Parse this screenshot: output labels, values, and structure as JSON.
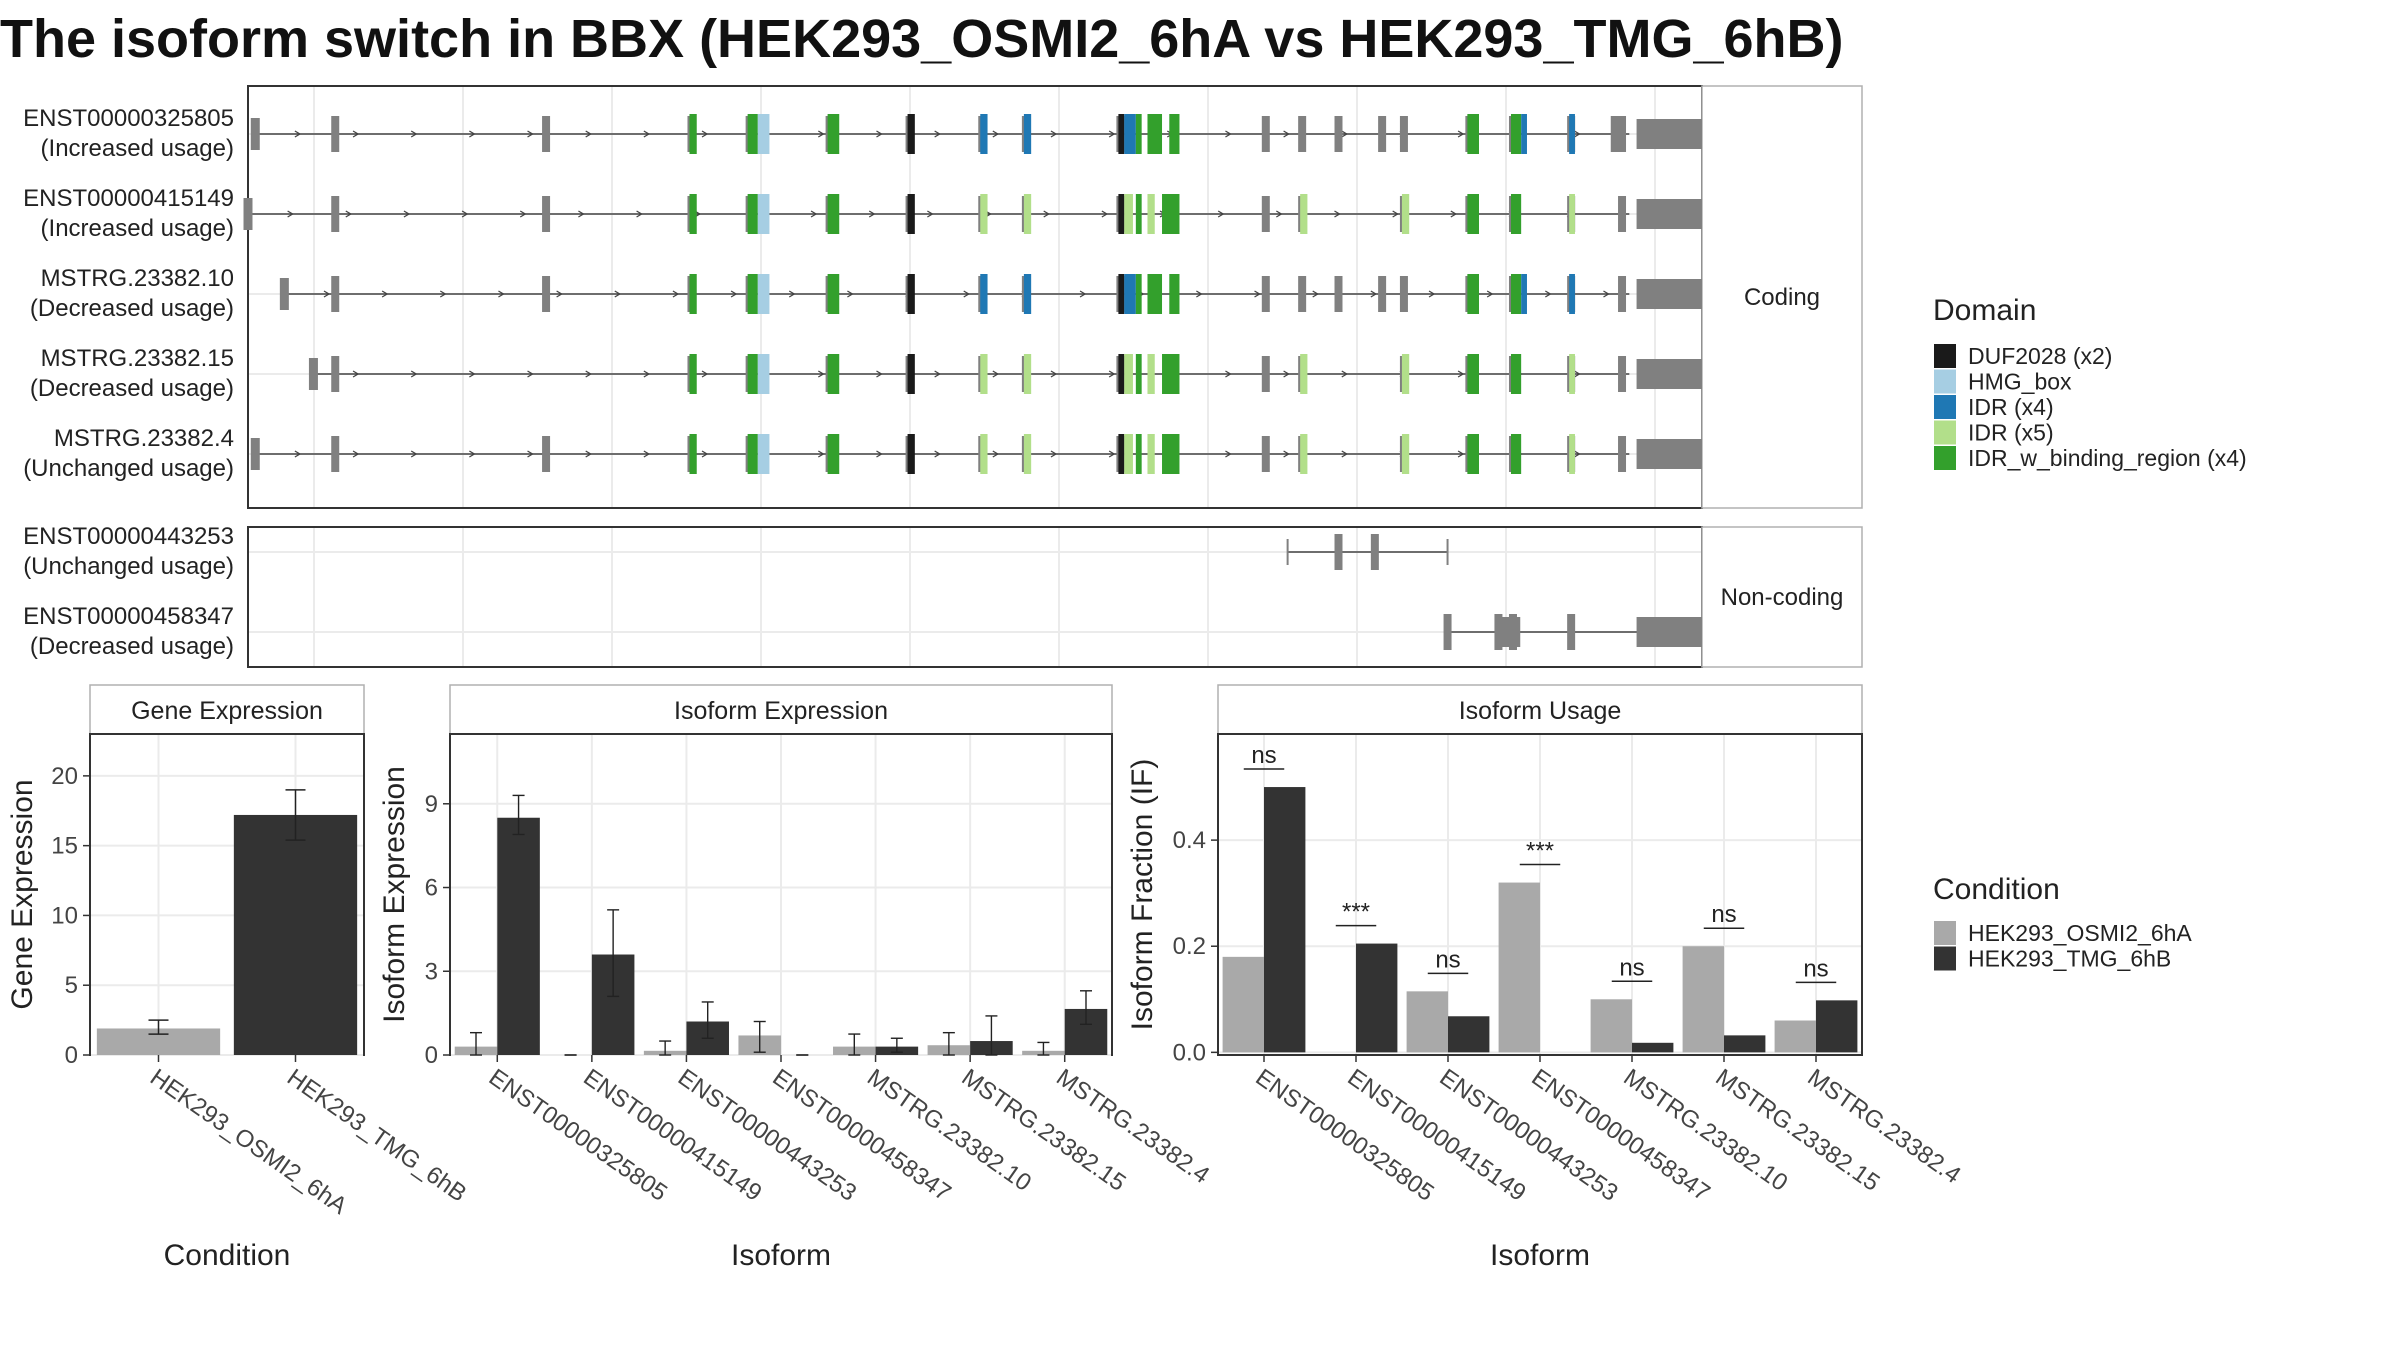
{
  "title": "The isoform switch in BBX (HEK293_OSMI2_6hA vs HEK293_TMG_6hB)",
  "colors": {
    "DUF2028": "#1a1a1a",
    "HMG_box": "#a6cee3",
    "IDR": "#1f78b4",
    "IDR_light": "#b2df8a",
    "IDR_w_binding_region": "#33a02c",
    "exon": "#808080",
    "condA": "#a9a9a9",
    "condB": "#333333",
    "grid": "#ebebeb",
    "panel_border": "#333333"
  },
  "chart_data": [
    {
      "type": "gene-structure",
      "x_range": [
        0,
        100
      ],
      "coding_label": "Coding",
      "noncoding_label": "Non-coding",
      "domain_legend_title": "Domain",
      "domain_legend": [
        {
          "label": "DUF2028 (x2)",
          "color": "#1a1a1a"
        },
        {
          "label": "HMG_box",
          "color": "#a6cee3"
        },
        {
          "label": "IDR (x4)",
          "color": "#1f78b4"
        },
        {
          "label": "IDR (x5)",
          "color": "#b2df8a"
        },
        {
          "label": "IDR_w_binding_region (x4)",
          "color": "#33a02c"
        }
      ],
      "transcripts": [
        {
          "id": "ENST00000325805",
          "usage": "(Increased usage)",
          "group": "coding",
          "start": 0.5,
          "end": 100,
          "exons": [
            0.5,
            6,
            20.5,
            30.5,
            34.5,
            40,
            45.5,
            50.5,
            53.5,
            60,
            70,
            72.5,
            75,
            78,
            79.5,
            84,
            87,
            91,
            94,
            94.5
          ],
          "domains": [
            [
              30.5,
              31,
              "IDR_w_binding_region"
            ],
            [
              34.5,
              35.2,
              "IDR_w_binding_region"
            ],
            [
              35.2,
              36,
              "HMG_box"
            ],
            [
              40,
              40.8,
              "IDR_w_binding_region"
            ],
            [
              45.5,
              46,
              "DUF2028"
            ],
            [
              50.5,
              51,
              "IDR"
            ],
            [
              53.5,
              54,
              "IDR"
            ],
            [
              60,
              60.4,
              "DUF2028"
            ],
            [
              60.4,
              61.2,
              "IDR"
            ],
            [
              61.2,
              61.6,
              "IDR_w_binding_region"
            ],
            [
              62,
              63,
              "IDR_w_binding_region"
            ],
            [
              63.5,
              64.2,
              "IDR_w_binding_region"
            ],
            [
              84,
              84.8,
              "IDR_w_binding_region"
            ],
            [
              87,
              87.7,
              "IDR_w_binding_region"
            ],
            [
              87.7,
              88.1,
              "IDR"
            ],
            [
              91,
              91.4,
              "IDR"
            ]
          ]
        },
        {
          "id": "ENST00000415149",
          "usage": "(Increased usage)",
          "group": "coding",
          "start": 0,
          "end": 100,
          "exons": [
            0,
            6,
            20.5,
            30.5,
            34.5,
            40,
            45.5,
            50.5,
            53.5,
            60,
            70,
            72.5,
            79.5,
            84,
            87,
            91,
            94.5
          ],
          "domains": [
            [
              30.5,
              31,
              "IDR_w_binding_region"
            ],
            [
              34.5,
              35.2,
              "IDR_w_binding_region"
            ],
            [
              35.2,
              36,
              "HMG_box"
            ],
            [
              40,
              40.8,
              "IDR_w_binding_region"
            ],
            [
              45.5,
              46,
              "DUF2028"
            ],
            [
              50.5,
              51,
              "IDR_light"
            ],
            [
              53.5,
              54,
              "IDR_light"
            ],
            [
              60,
              60.4,
              "DUF2028"
            ],
            [
              60.4,
              61,
              "IDR_light"
            ],
            [
              61.2,
              61.6,
              "IDR_w_binding_region"
            ],
            [
              62,
              62.5,
              "IDR_light"
            ],
            [
              63,
              64.2,
              "IDR_w_binding_region"
            ],
            [
              72.5,
              73,
              "IDR_light"
            ],
            [
              79.5,
              80,
              "IDR_light"
            ],
            [
              84,
              84.8,
              "IDR_w_binding_region"
            ],
            [
              87,
              87.7,
              "IDR_w_binding_region"
            ],
            [
              91,
              91.4,
              "IDR_light"
            ]
          ]
        },
        {
          "id": "MSTRG.23382.10",
          "usage": "(Decreased usage)",
          "group": "coding",
          "start": 2.5,
          "end": 100,
          "exons": [
            2.5,
            6,
            20.5,
            30.5,
            34.5,
            40,
            45.5,
            50.5,
            53.5,
            60,
            70,
            72.5,
            75,
            78,
            79.5,
            84,
            87,
            91,
            94.5
          ],
          "domains": [
            [
              30.5,
              31,
              "IDR_w_binding_region"
            ],
            [
              34.5,
              35.2,
              "IDR_w_binding_region"
            ],
            [
              35.2,
              36,
              "HMG_box"
            ],
            [
              40,
              40.8,
              "IDR_w_binding_region"
            ],
            [
              45.5,
              46,
              "DUF2028"
            ],
            [
              50.5,
              51,
              "IDR"
            ],
            [
              53.5,
              54,
              "IDR"
            ],
            [
              60,
              60.4,
              "DUF2028"
            ],
            [
              60.4,
              61.2,
              "IDR"
            ],
            [
              61.2,
              61.6,
              "IDR_w_binding_region"
            ],
            [
              62,
              63,
              "IDR_w_binding_region"
            ],
            [
              63.5,
              64.2,
              "IDR_w_binding_region"
            ],
            [
              84,
              84.8,
              "IDR_w_binding_region"
            ],
            [
              87,
              87.7,
              "IDR_w_binding_region"
            ],
            [
              87.7,
              88.1,
              "IDR"
            ],
            [
              91,
              91.4,
              "IDR"
            ]
          ]
        },
        {
          "id": "MSTRG.23382.15",
          "usage": "(Decreased usage)",
          "group": "coding",
          "start": 4.5,
          "end": 100,
          "exons": [
            4.5,
            6,
            30.5,
            34.5,
            40,
            45.5,
            50.5,
            53.5,
            60,
            70,
            72.5,
            79.5,
            84,
            87,
            91,
            94.5
          ],
          "domains": [
            [
              30.5,
              31,
              "IDR_w_binding_region"
            ],
            [
              34.5,
              35.2,
              "IDR_w_binding_region"
            ],
            [
              35.2,
              36,
              "HMG_box"
            ],
            [
              40,
              40.8,
              "IDR_w_binding_region"
            ],
            [
              45.5,
              46,
              "DUF2028"
            ],
            [
              50.5,
              51,
              "IDR_light"
            ],
            [
              53.5,
              54,
              "IDR_light"
            ],
            [
              60,
              60.4,
              "DUF2028"
            ],
            [
              60.4,
              61,
              "IDR_light"
            ],
            [
              61.2,
              61.6,
              "IDR_w_binding_region"
            ],
            [
              62,
              62.5,
              "IDR_light"
            ],
            [
              63,
              64.2,
              "IDR_w_binding_region"
            ],
            [
              72.5,
              73,
              "IDR_light"
            ],
            [
              79.5,
              80,
              "IDR_light"
            ],
            [
              84,
              84.8,
              "IDR_w_binding_region"
            ],
            [
              87,
              87.7,
              "IDR_w_binding_region"
            ],
            [
              91,
              91.4,
              "IDR_light"
            ]
          ]
        },
        {
          "id": "MSTRG.23382.4",
          "usage": "(Unchanged usage)",
          "group": "coding",
          "start": 0.5,
          "end": 100,
          "exons": [
            0.5,
            6,
            20.5,
            30.5,
            34.5,
            40,
            45.5,
            50.5,
            53.5,
            60,
            70,
            72.5,
            79.5,
            84,
            87,
            91,
            94.5
          ],
          "domains": [
            [
              30.5,
              31,
              "IDR_w_binding_region"
            ],
            [
              34.5,
              35.2,
              "IDR_w_binding_region"
            ],
            [
              35.2,
              36,
              "HMG_box"
            ],
            [
              40,
              40.8,
              "IDR_w_binding_region"
            ],
            [
              45.5,
              46,
              "DUF2028"
            ],
            [
              50.5,
              51,
              "IDR_light"
            ],
            [
              53.5,
              54,
              "IDR_light"
            ],
            [
              60,
              60.4,
              "DUF2028"
            ],
            [
              60.4,
              61,
              "IDR_light"
            ],
            [
              61.2,
              61.6,
              "IDR_w_binding_region"
            ],
            [
              62,
              62.5,
              "IDR_light"
            ],
            [
              63,
              64.2,
              "IDR_w_binding_region"
            ],
            [
              72.5,
              73,
              "IDR_light"
            ],
            [
              79.5,
              80,
              "IDR_light"
            ],
            [
              84,
              84.8,
              "IDR_w_binding_region"
            ],
            [
              87,
              87.7,
              "IDR_w_binding_region"
            ],
            [
              91,
              91.4,
              "IDR_light"
            ]
          ]
        },
        {
          "id": "ENST00000443253",
          "usage": "(Unchanged usage)",
          "group": "noncoding",
          "start": 71.5,
          "end": 82.5,
          "exons": [
            75,
            77.5
          ],
          "thin_ends": [
            71.5,
            82.5
          ]
        },
        {
          "id": "ENST00000458347",
          "usage": "(Decreased usage)",
          "group": "noncoding",
          "start": 82.5,
          "end": 100,
          "exons": [
            82.5,
            86,
            87,
            91
          ],
          "big_exons": [
            [
              86,
              87.5
            ],
            [
              95.5,
              100
            ]
          ]
        }
      ]
    },
    {
      "type": "bar",
      "strip": "Gene Expression",
      "xlabel": "Condition",
      "ylabel": "Gene Expression",
      "ylim": [
        0,
        23
      ],
      "yticks": [
        0,
        5,
        10,
        15,
        20
      ],
      "categories": [
        "HEK293_OSMI2_6hA",
        "HEK293_TMG_6hB"
      ],
      "values": [
        1.9,
        17.2
      ],
      "errors": [
        [
          1.5,
          2.5
        ],
        [
          15.4,
          19
        ]
      ]
    },
    {
      "type": "bar",
      "strip": "Isoform Expression",
      "xlabel": "Isoform",
      "ylabel": "Isoform Expression",
      "ylim": [
        0,
        11.5
      ],
      "yticks": [
        0,
        3,
        6,
        9
      ],
      "categories": [
        "ENST00000325805",
        "ENST00000415149",
        "ENST00000443253",
        "ENST00000458347",
        "MSTRG.23382.10",
        "MSTRG.23382.15",
        "MSTRG.23382.4"
      ],
      "series": [
        {
          "name": "HEK293_OSMI2_6hA",
          "values": [
            0.3,
            0,
            0.15,
            0.7,
            0.3,
            0.35,
            0.15
          ],
          "errors": [
            [
              0,
              0.8
            ],
            [
              0,
              0
            ],
            [
              0,
              0.5
            ],
            [
              0.1,
              1.2
            ],
            [
              0,
              0.75
            ],
            [
              0,
              0.8
            ],
            [
              0,
              0.45
            ]
          ]
        },
        {
          "name": "HEK293_TMG_6hB",
          "values": [
            8.5,
            3.6,
            1.2,
            0,
            0.3,
            0.5,
            1.65
          ],
          "errors": [
            [
              7.9,
              9.3
            ],
            [
              2.1,
              5.2
            ],
            [
              0.6,
              1.9
            ],
            [
              0,
              0
            ],
            [
              0.1,
              0.6
            ],
            [
              0,
              1.4
            ],
            [
              1.1,
              2.3
            ]
          ]
        }
      ]
    },
    {
      "type": "bar",
      "strip": "Isoform Usage",
      "xlabel": "Isoform",
      "ylabel": "Isoform Fraction (IF)",
      "ylim": [
        -0.005,
        0.6
      ],
      "yticks": [
        0.0,
        0.2,
        0.4
      ],
      "ytick_labels": [
        "0.0",
        "0.2",
        "0.4"
      ],
      "categories": [
        "ENST00000325805",
        "ENST00000415149",
        "ENST00000443253",
        "ENST00000458347",
        "MSTRG.23382.10",
        "MSTRG.23382.15",
        "MSTRG.23382.4"
      ],
      "series": [
        {
          "name": "HEK293_OSMI2_6hA",
          "values": [
            0.18,
            0.0,
            0.115,
            0.32,
            0.1,
            0.2,
            0.06
          ]
        },
        {
          "name": "HEK293_TMG_6hB",
          "values": [
            0.5,
            0.205,
            0.068,
            0.0,
            0.018,
            0.032,
            0.098
          ]
        }
      ],
      "significance": [
        "ns",
        "***",
        "ns",
        "***",
        "ns",
        "ns",
        "ns"
      ]
    }
  ],
  "condition_legend": {
    "title": "Condition",
    "items": [
      {
        "label": "HEK293_OSMI2_6hA",
        "color": "#a9a9a9"
      },
      {
        "label": "HEK293_TMG_6hB",
        "color": "#333333"
      }
    ]
  }
}
